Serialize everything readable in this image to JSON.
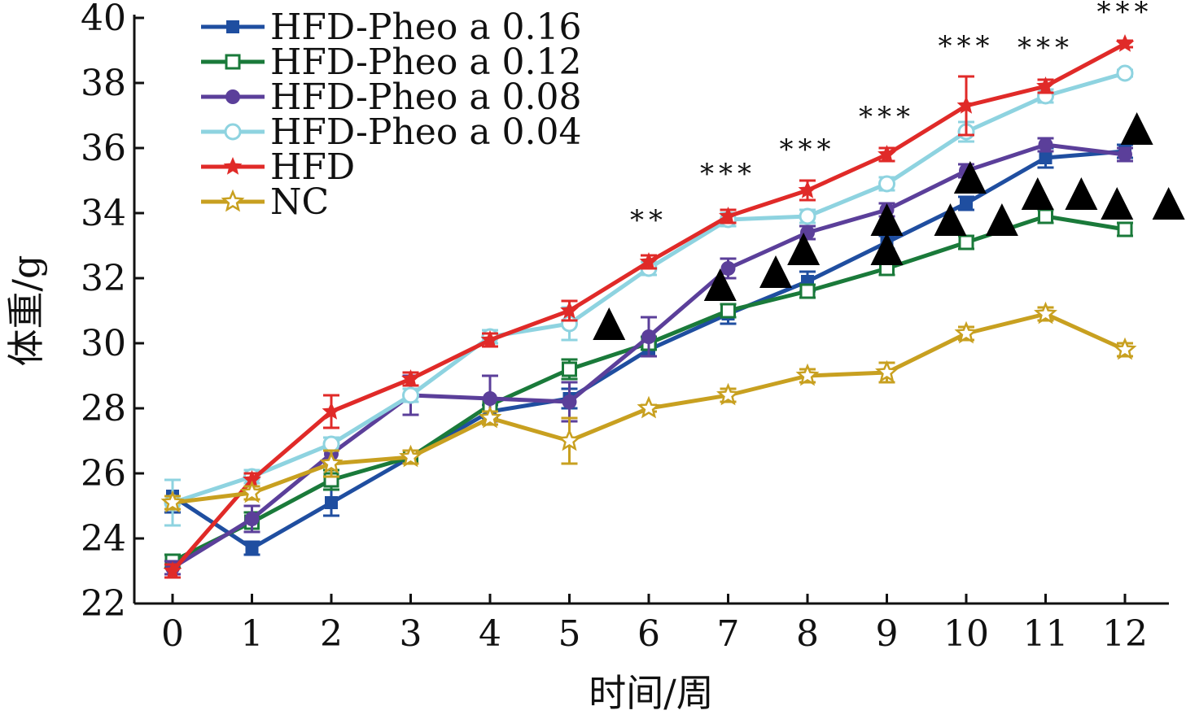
{
  "chart_data": {
    "type": "line",
    "xlabel": "时间/周",
    "ylabel": "体重/g",
    "x": [
      0,
      1,
      2,
      3,
      4,
      5,
      6,
      7,
      8,
      9,
      10,
      11,
      12
    ],
    "ylim": [
      22,
      40
    ],
    "yticks": [
      22,
      24,
      26,
      28,
      30,
      32,
      34,
      36,
      38,
      40
    ],
    "grid": false,
    "legend_position": "top-left",
    "series": [
      {
        "name": "HFD-Pheo a 0.16",
        "color": "#1f4ea0",
        "marker": "square-filled",
        "values": [
          25.3,
          23.7,
          25.1,
          26.5,
          27.9,
          28.3,
          29.8,
          30.9,
          31.9,
          33.1,
          34.3,
          35.7,
          35.9
        ],
        "errors": [
          0.5,
          0.2,
          0.4,
          0.2,
          0.2,
          0.3,
          0.2,
          0.3,
          0.3,
          0.2,
          0.2,
          0.3,
          0.2
        ]
      },
      {
        "name": "HFD-Pheo a 0.12",
        "color": "#1a7a3a",
        "marker": "square-open",
        "values": [
          23.3,
          24.5,
          25.8,
          26.5,
          28.1,
          29.2,
          30.0,
          31.0,
          31.6,
          32.3,
          33.1,
          33.9,
          33.5
        ],
        "errors": [
          0.2,
          0.3,
          0.3,
          0.2,
          0.2,
          0.3,
          0.2,
          0.2,
          0.2,
          0.2,
          0.2,
          0.2,
          0.2
        ]
      },
      {
        "name": "HFD-Pheo a 0.08",
        "color": "#5b3f9a",
        "marker": "circle-filled",
        "values": [
          23.1,
          24.6,
          26.6,
          28.4,
          28.3,
          28.2,
          30.2,
          32.3,
          33.4,
          34.1,
          35.3,
          36.1,
          35.8
        ],
        "errors": [
          0.2,
          0.4,
          0.3,
          0.6,
          0.7,
          0.6,
          0.6,
          0.3,
          0.2,
          0.2,
          0.2,
          0.2,
          0.2
        ]
      },
      {
        "name": "HFD-Pheo a 0.04",
        "color": "#8ed3e0",
        "marker": "circle-open",
        "values": [
          25.1,
          25.9,
          26.9,
          28.4,
          30.2,
          30.6,
          32.3,
          33.8,
          33.9,
          34.9,
          36.5,
          37.6,
          38.3
        ],
        "errors": [
          0.7,
          0.2,
          0.2,
          0.2,
          0.2,
          0.5,
          0.2,
          0.2,
          0.2,
          0.2,
          0.3,
          0.2,
          0.1
        ]
      },
      {
        "name": "HFD",
        "color": "#e02a28",
        "marker": "star-filled",
        "values": [
          23.0,
          25.8,
          27.9,
          28.9,
          30.1,
          31.0,
          32.5,
          33.9,
          34.7,
          35.8,
          37.3,
          37.9,
          39.2
        ],
        "errors": [
          0.2,
          0.2,
          0.5,
          0.2,
          0.2,
          0.3,
          0.2,
          0.2,
          0.3,
          0.2,
          0.9,
          0.2,
          0.1
        ]
      },
      {
        "name": "NC",
        "color": "#c8a020",
        "marker": "star-open",
        "values": [
          25.1,
          25.4,
          26.3,
          26.5,
          27.7,
          27.0,
          28.0,
          28.4,
          29.0,
          29.1,
          30.3,
          30.9,
          29.8
        ],
        "errors": [
          0.2,
          0.2,
          0.4,
          0.2,
          0.2,
          0.7,
          0.1,
          0.2,
          0.2,
          0.3,
          0.2,
          0.2,
          0.2
        ]
      }
    ],
    "annotations": [
      {
        "text": "**",
        "x": 6
      },
      {
        "text": "***",
        "x": 7
      },
      {
        "text": "***",
        "x": 8
      },
      {
        "text": "***",
        "x": 9
      },
      {
        "text": "***",
        "x": 10
      },
      {
        "text": "***",
        "x": 11
      },
      {
        "text": "***",
        "x": 12
      }
    ],
    "triangle_markers": [
      {
        "x": 5.5,
        "y": 30.6
      },
      {
        "x": 6.9,
        "y": 31.8
      },
      {
        "x": 7.6,
        "y": 32.2
      },
      {
        "x": 7.95,
        "y": 32.9
      },
      {
        "x": 9.0,
        "y": 33.8
      },
      {
        "x": 9.0,
        "y": 32.9
      },
      {
        "x": 9.8,
        "y": 33.8
      },
      {
        "x": 10.05,
        "y": 35.1
      },
      {
        "x": 10.45,
        "y": 33.8
      },
      {
        "x": 10.9,
        "y": 34.6
      },
      {
        "x": 11.45,
        "y": 34.6
      },
      {
        "x": 11.9,
        "y": 34.3
      },
      {
        "x": 12.15,
        "y": 36.6
      },
      {
        "x": 12.55,
        "y": 34.3
      }
    ]
  }
}
